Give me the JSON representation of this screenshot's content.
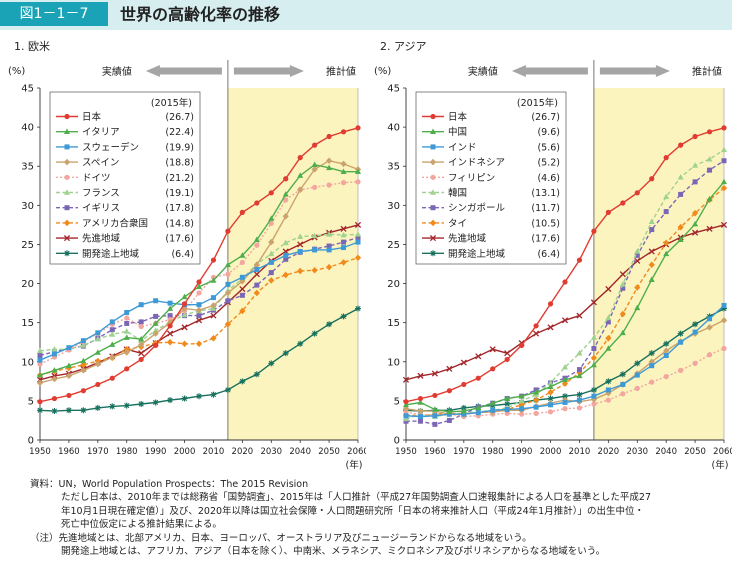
{
  "header": {
    "figure_no": "図1－1－7",
    "title": "世界の高齢化率の推移"
  },
  "notes": [
    {
      "text": "資料：UN，World Population Prospects：The 2015 Revision",
      "indent": false
    },
    {
      "text": "ただし日本は、2010年までは総務省「国勢調査」、2015年は「人口推計（平成27年国勢調査人口速報集計による人口を基準とした平成27",
      "indent": true
    },
    {
      "text": "年10月1日現在確定値）」及び、2020年以降は国立社会保障・人口問題研究所「日本の将来推計人口（平成24年1月推計）」の出生中位・",
      "indent": true
    },
    {
      "text": "死亡中位仮定による推計結果による。",
      "indent": true
    },
    {
      "text": "（注）先進地域とは、北部アメリカ、日本、ヨーロッパ、オーストラリア及びニュージーランドからなる地域をいう。",
      "indent": false
    },
    {
      "text": "開発途上地域とは、アフリカ、アジア（日本を除く）、中南米、メラネシア、ミクロネシア及びポリネシアからなる地域をいう。",
      "indent": true
    }
  ],
  "chart_data": [
    {
      "type": "line",
      "title": "1. 欧米",
      "ylabel": "(%)",
      "xlabel": "(年)",
      "ylim": [
        0,
        45
      ],
      "yticks": [
        0,
        5,
        10,
        15,
        20,
        25,
        30,
        35,
        40,
        45
      ],
      "xticks": [
        1950,
        1960,
        1970,
        1980,
        1990,
        2000,
        2010,
        2020,
        2030,
        2040,
        2050,
        2060
      ],
      "actual_label": "実績値",
      "projected_label": "推計値",
      "projection_start": 2015,
      "legend_title": "(2015年)",
      "legend_position": "top-left",
      "grid": false,
      "x": [
        1950,
        1955,
        1960,
        1965,
        1970,
        1975,
        1980,
        1985,
        1990,
        1995,
        2000,
        2005,
        2010,
        2015,
        2020,
        2025,
        2030,
        2035,
        2040,
        2045,
        2050,
        2055,
        2060
      ],
      "series": [
        {
          "name": "日本",
          "value2015": "(26.7)",
          "color": "#e03c31",
          "marker": "circle",
          "dash": "solid",
          "values": [
            4.9,
            5.3,
            5.7,
            6.3,
            7.1,
            7.9,
            9.1,
            10.3,
            12.1,
            14.6,
            17.4,
            20.2,
            23.0,
            26.7,
            29.1,
            30.3,
            31.6,
            33.4,
            36.1,
            37.7,
            38.8,
            39.4,
            39.9
          ]
        },
        {
          "name": "イタリア",
          "value2015": "(22.4)",
          "color": "#4fae4c",
          "marker": "triangle",
          "dash": "solid",
          "values": [
            8.3,
            8.9,
            9.5,
            10.1,
            11.2,
            12.2,
            13.1,
            12.9,
            14.9,
            16.8,
            18.3,
            19.6,
            20.4,
            22.4,
            23.6,
            25.6,
            28.3,
            31.4,
            33.8,
            35.2,
            34.8,
            34.3,
            34.3
          ]
        },
        {
          "name": "スウェーデン",
          "value2015": "(19.9)",
          "color": "#3e9ad6",
          "marker": "square",
          "dash": "solid",
          "values": [
            10.2,
            11.0,
            11.8,
            12.7,
            13.7,
            15.1,
            16.3,
            17.3,
            17.8,
            17.5,
            17.3,
            17.3,
            18.2,
            19.9,
            20.8,
            21.8,
            22.7,
            23.6,
            24.1,
            24.3,
            24.3,
            24.6,
            25.3
          ]
        },
        {
          "name": "スペイン",
          "value2015": "(18.8)",
          "color": "#c9a26d",
          "marker": "diamond",
          "dash": "solid",
          "values": [
            7.3,
            7.8,
            8.2,
            8.9,
            9.7,
            10.6,
            11.2,
            12.2,
            13.6,
            15.0,
            16.8,
            16.6,
            17.2,
            18.8,
            20.3,
            22.4,
            25.3,
            28.6,
            32.0,
            34.6,
            35.7,
            35.3,
            34.6
          ]
        },
        {
          "name": "ドイツ",
          "value2015": "(21.2)",
          "color": "#f2a69f",
          "marker": "circle",
          "dash": "dotted",
          "values": [
            9.7,
            10.6,
            11.5,
            12.6,
            13.6,
            14.8,
            15.6,
            14.5,
            14.9,
            15.4,
            16.5,
            18.8,
            20.8,
            21.2,
            22.7,
            24.9,
            27.7,
            30.7,
            32.0,
            32.3,
            32.6,
            32.9,
            33.0
          ]
        },
        {
          "name": "フランス",
          "value2015": "(19.1)",
          "color": "#9fd18f",
          "marker": "triangle",
          "dash": "dashed",
          "values": [
            11.4,
            11.6,
            11.6,
            12.1,
            12.9,
            13.5,
            13.9,
            12.7,
            14.0,
            15.1,
            16.0,
            16.5,
            16.8,
            19.1,
            20.6,
            22.5,
            23.8,
            25.2,
            26.0,
            26.1,
            26.3,
            26.2,
            26.3
          ]
        },
        {
          "name": "イギリス",
          "value2015": "(17.8)",
          "color": "#7b66b6",
          "marker": "square",
          "dash": "dashed",
          "values": [
            10.8,
            11.3,
            11.7,
            12.0,
            13.0,
            14.1,
            14.9,
            15.1,
            15.8,
            15.9,
            15.9,
            15.9,
            16.6,
            17.8,
            18.5,
            19.8,
            21.4,
            23.1,
            24.0,
            24.4,
            24.8,
            25.3,
            25.9
          ]
        },
        {
          "name": "アメリカ合衆国",
          "value2015": "(14.8)",
          "color": "#f08a1c",
          "marker": "diamond",
          "dash": "dashed",
          "values": [
            8.3,
            8.8,
            9.2,
            9.6,
            10.1,
            10.5,
            11.6,
            11.9,
            12.4,
            12.5,
            12.3,
            12.3,
            13.0,
            14.8,
            16.5,
            18.8,
            20.4,
            21.1,
            21.6,
            21.7,
            22.1,
            22.7,
            23.3
          ]
        },
        {
          "name": "先進地域",
          "value2015": "(17.6)",
          "color": "#a3262b",
          "marker": "x",
          "dash": "solid",
          "values": [
            7.7,
            8.2,
            8.5,
            9.1,
            9.9,
            10.7,
            11.6,
            11.1,
            12.4,
            13.6,
            14.4,
            15.3,
            15.9,
            17.6,
            19.3,
            21.2,
            22.9,
            24.1,
            25.0,
            25.9,
            26.5,
            27.0,
            27.5
          ]
        },
        {
          "name": "開発途上地域",
          "value2015": "(6.4)",
          "color": "#17715e",
          "marker": "star",
          "dash": "solid",
          "values": [
            3.8,
            3.7,
            3.8,
            3.8,
            4.1,
            4.3,
            4.4,
            4.6,
            4.8,
            5.1,
            5.3,
            5.6,
            5.8,
            6.4,
            7.5,
            8.4,
            9.8,
            11.1,
            12.3,
            13.6,
            14.8,
            15.8,
            16.8
          ]
        }
      ]
    },
    {
      "type": "line",
      "title": "2. アジア",
      "ylabel": "(%)",
      "xlabel": "(年)",
      "ylim": [
        0,
        45
      ],
      "yticks": [
        0,
        5,
        10,
        15,
        20,
        25,
        30,
        35,
        40,
        45
      ],
      "xticks": [
        1950,
        1960,
        1970,
        1980,
        1990,
        2000,
        2010,
        2020,
        2030,
        2040,
        2050,
        2060
      ],
      "actual_label": "実績値",
      "projected_label": "推計値",
      "projection_start": 2015,
      "legend_title": "(2015年)",
      "legend_position": "top-left",
      "grid": false,
      "x": [
        1950,
        1955,
        1960,
        1965,
        1970,
        1975,
        1980,
        1985,
        1990,
        1995,
        2000,
        2005,
        2010,
        2015,
        2020,
        2025,
        2030,
        2035,
        2040,
        2045,
        2050,
        2055,
        2060
      ],
      "series": [
        {
          "name": "日本",
          "value2015": "(26.7)",
          "color": "#e03c31",
          "marker": "circle",
          "dash": "solid",
          "values": [
            4.9,
            5.3,
            5.7,
            6.3,
            7.1,
            7.9,
            9.1,
            10.3,
            12.1,
            14.6,
            17.4,
            20.2,
            23.0,
            26.7,
            29.1,
            30.3,
            31.6,
            33.4,
            36.1,
            37.7,
            38.8,
            39.4,
            39.9
          ]
        },
        {
          "name": "中国",
          "value2015": "(9.6)",
          "color": "#4fae4c",
          "marker": "triangle",
          "dash": "solid",
          "values": [
            4.5,
            4.8,
            3.9,
            3.6,
            3.7,
            4.1,
            4.7,
            5.3,
            5.6,
            6.1,
            6.8,
            7.7,
            8.2,
            9.6,
            11.7,
            13.7,
            16.9,
            20.5,
            23.8,
            25.6,
            27.6,
            30.8,
            33.0
          ]
        },
        {
          "name": "インド",
          "value2015": "(5.6)",
          "color": "#3e9ad6",
          "marker": "square",
          "dash": "solid",
          "values": [
            3.1,
            3.0,
            3.1,
            3.3,
            3.3,
            3.5,
            3.8,
            3.9,
            4.0,
            4.2,
            4.5,
            4.8,
            5.1,
            5.6,
            6.4,
            7.1,
            8.3,
            9.5,
            10.8,
            12.5,
            13.8,
            15.5,
            17.2
          ]
        },
        {
          "name": "インドネシア",
          "value2015": "(5.2)",
          "color": "#c9a26d",
          "marker": "diamond",
          "dash": "solid",
          "values": [
            4.0,
            3.7,
            3.7,
            3.3,
            3.3,
            3.5,
            3.6,
            3.8,
            3.8,
            4.3,
            4.7,
            5.1,
            4.9,
            5.2,
            6.0,
            7.1,
            8.5,
            10.0,
            11.4,
            12.6,
            13.6,
            14.4,
            15.3
          ]
        },
        {
          "name": "フィリピン",
          "value2015": "(4.6)",
          "color": "#f2a69f",
          "marker": "circle",
          "dash": "dotted",
          "values": [
            3.6,
            3.2,
            3.2,
            3.3,
            3.0,
            3.1,
            3.3,
            3.4,
            3.3,
            3.4,
            3.6,
            4.0,
            4.1,
            4.6,
            5.1,
            5.9,
            6.6,
            7.4,
            8.1,
            8.9,
            9.8,
            10.9,
            11.7
          ]
        },
        {
          "name": "韓国",
          "value2015": "(13.1)",
          "color": "#9fd18f",
          "marker": "triangle",
          "dash": "dashed",
          "values": [
            2.7,
            3.3,
            3.0,
            3.3,
            3.4,
            3.6,
            3.8,
            4.1,
            5.0,
            5.8,
            7.3,
            9.3,
            11.1,
            13.1,
            15.6,
            19.9,
            24.1,
            27.9,
            31.1,
            33.6,
            35.1,
            35.9,
            37.1
          ]
        },
        {
          "name": "シンガポール",
          "value2015": "(11.7)",
          "color": "#7b66b6",
          "marker": "square",
          "dash": "dashed",
          "values": [
            2.4,
            2.4,
            2.0,
            2.5,
            3.3,
            4.2,
            4.7,
            5.3,
            5.6,
            6.4,
            7.3,
            7.9,
            9.0,
            11.7,
            15.1,
            19.4,
            23.6,
            26.9,
            29.2,
            31.4,
            33.0,
            34.5,
            35.7
          ]
        },
        {
          "name": "タイ",
          "value2015": "(10.5)",
          "color": "#f08a1c",
          "marker": "diamond",
          "dash": "dashed",
          "values": [
            3.2,
            3.1,
            3.3,
            3.4,
            3.4,
            3.5,
            3.6,
            3.9,
            4.5,
            5.1,
            6.1,
            7.2,
            8.6,
            10.5,
            13.0,
            16.1,
            19.5,
            22.4,
            25.2,
            27.2,
            29.0,
            30.7,
            32.2
          ]
        },
        {
          "name": "先進地域",
          "value2015": "(17.6)",
          "color": "#a3262b",
          "marker": "x",
          "dash": "solid",
          "values": [
            7.7,
            8.2,
            8.5,
            9.1,
            9.9,
            10.7,
            11.6,
            11.1,
            12.4,
            13.6,
            14.4,
            15.3,
            15.9,
            17.6,
            19.3,
            21.2,
            22.9,
            24.1,
            25.0,
            25.9,
            26.5,
            27.0,
            27.5
          ]
        },
        {
          "name": "開発途上地域",
          "value2015": "(6.4)",
          "color": "#17715e",
          "marker": "star",
          "dash": "solid",
          "values": [
            3.8,
            3.7,
            3.8,
            3.8,
            4.1,
            4.3,
            4.4,
            4.6,
            4.8,
            5.1,
            5.3,
            5.6,
            5.8,
            6.4,
            7.5,
            8.4,
            9.8,
            11.1,
            12.3,
            13.6,
            14.8,
            15.8,
            16.8
          ]
        }
      ]
    }
  ]
}
